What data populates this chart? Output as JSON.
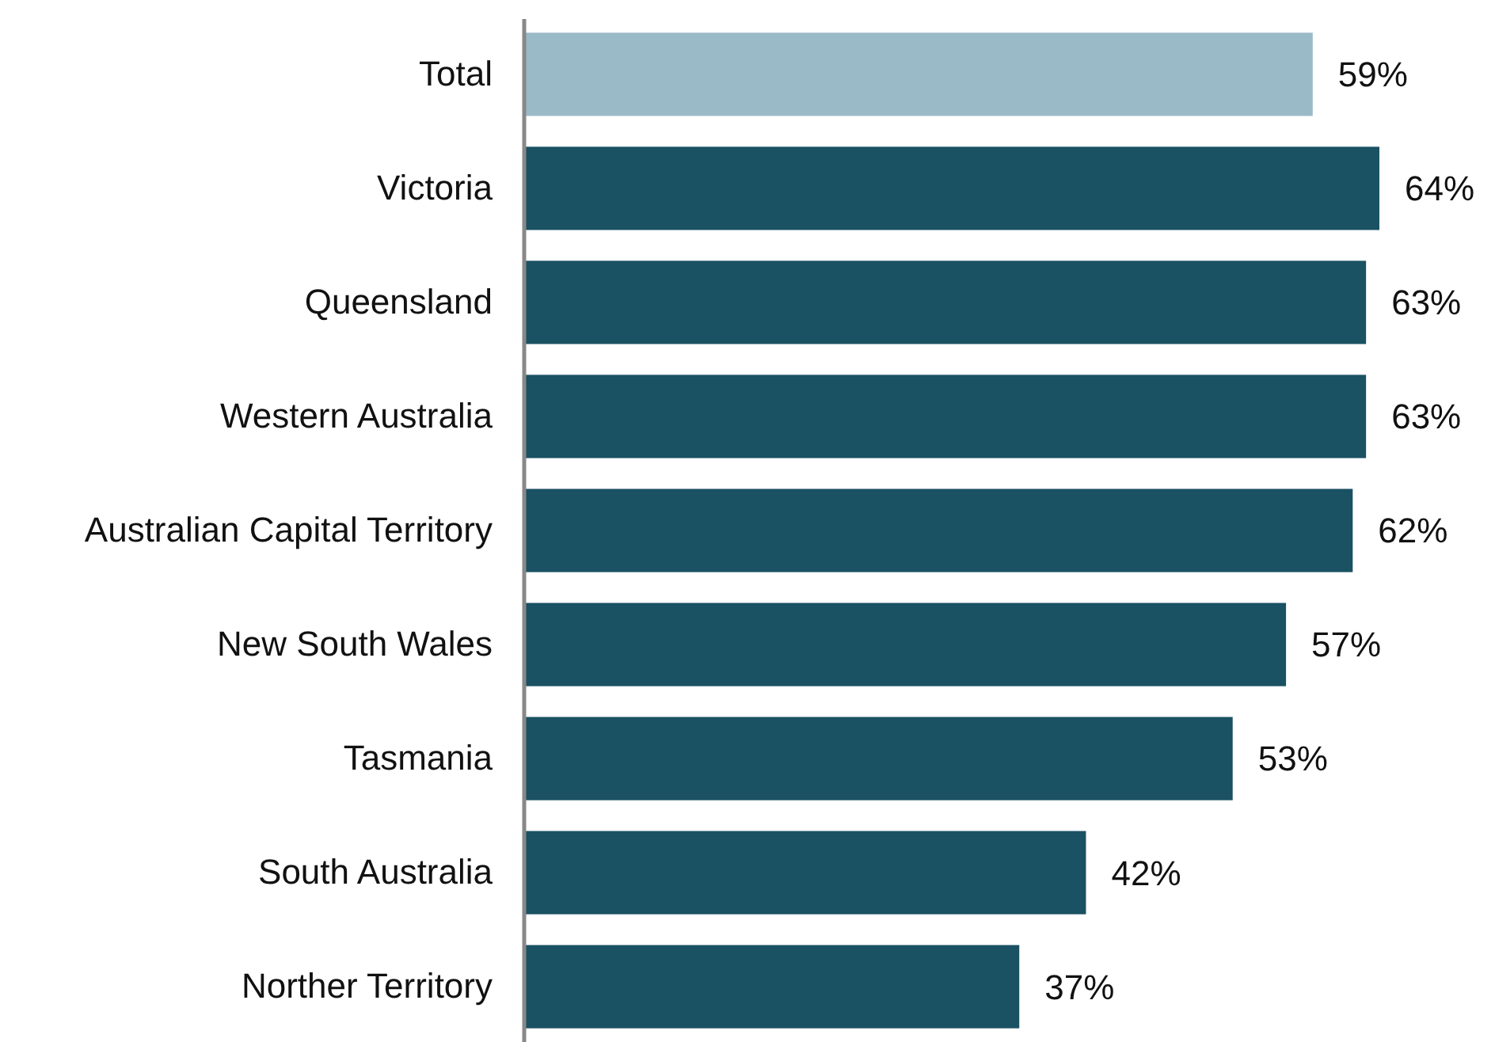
{
  "chart_data": {
    "type": "bar",
    "orientation": "horizontal",
    "categories": [
      "Total",
      "Victoria",
      "Queensland",
      "Western Australia",
      "Australian Capital Territory",
      "New South Wales",
      "Tasmania",
      "South Australia",
      "Norther Territory"
    ],
    "values": [
      59,
      64,
      63,
      63,
      62,
      57,
      53,
      42,
      37
    ],
    "colors": [
      "#9bbac8",
      "#1a5163",
      "#1a5163",
      "#1a5163",
      "#1a5163",
      "#1a5163",
      "#1a5163",
      "#1a5163",
      "#1a5163"
    ],
    "value_labels": [
      "59%",
      "64%",
      "63%",
      "63%",
      "62%",
      "57%",
      "53%",
      "42%",
      "37%"
    ],
    "tick_labels": "y"
  }
}
